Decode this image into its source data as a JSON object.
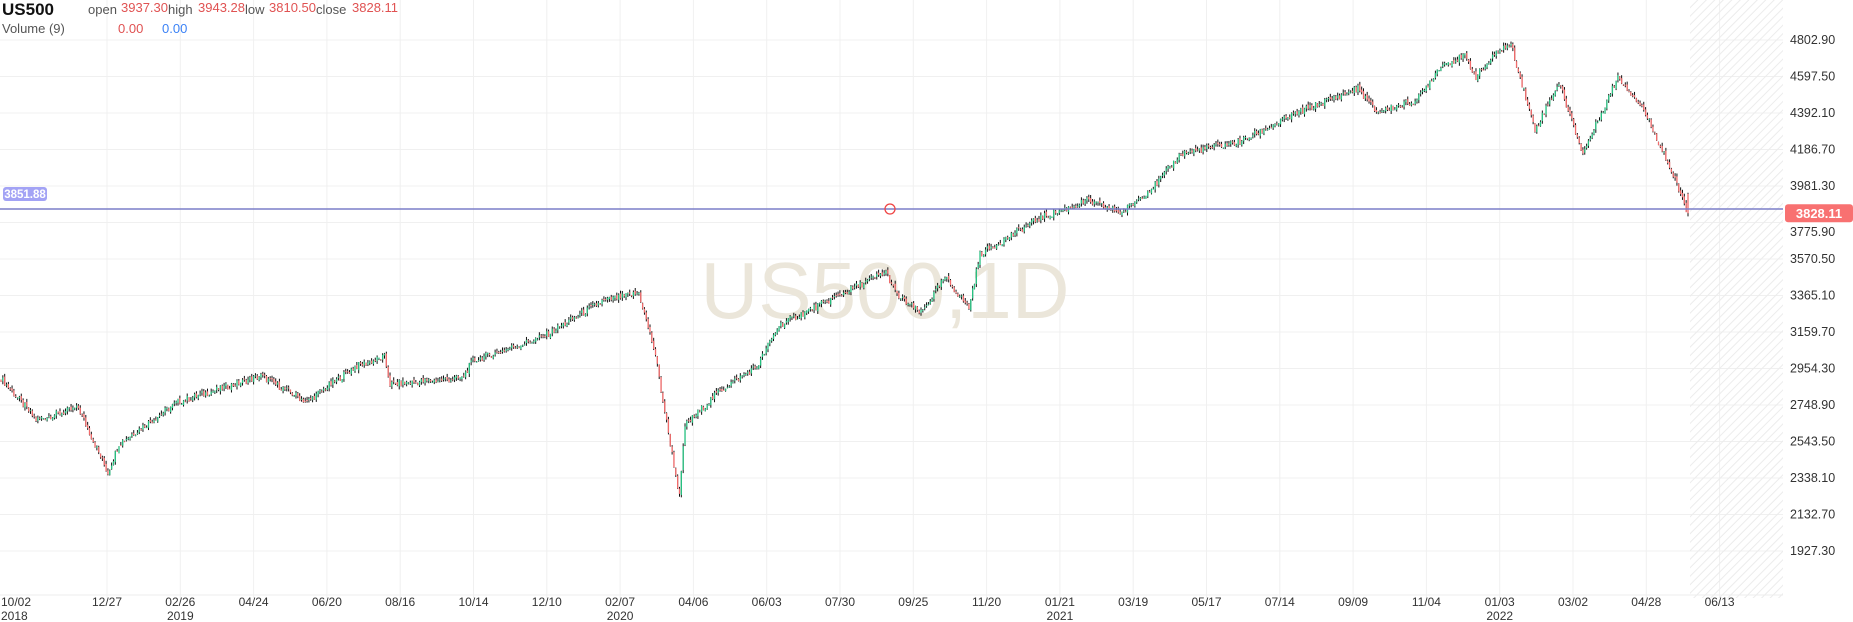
{
  "legend": {
    "symbol": "US500",
    "open_label": "open",
    "open": "3937.30",
    "high_label": "high",
    "high": "3943.28",
    "low_label": "low",
    "low": "3810.50",
    "close_label": "close",
    "close": "3828.11",
    "volume_label": "Volume (9)",
    "volume_value_1": "0.00",
    "volume_value_2": "0.00"
  },
  "crosshair": {
    "price_label": "3851.88",
    "price": 3851.88
  },
  "last_price_badge": "3828.11",
  "watermark": "US500,1D",
  "colors": {
    "up": "#26c281",
    "down": "#f26b6b",
    "wick": "#111111",
    "line": "#7b7fc8",
    "badge": "#f87171",
    "crosshair_label": "#a3a3f5"
  },
  "chart_data": {
    "type": "candlestick",
    "title": "US500,1D",
    "ylim": [
      1800,
      4900
    ],
    "y_ticks": [
      "4802.90",
      "4597.50",
      "4392.10",
      "4186.70",
      "3981.30",
      "3775.90",
      "3570.50",
      "3365.10",
      "3159.70",
      "2954.30",
      "2748.90",
      "2543.50",
      "2338.10",
      "2132.70",
      "1927.30"
    ],
    "x_ticks": [
      {
        "label": "10/02",
        "year": "2018"
      },
      {
        "label": "12/27"
      },
      {
        "label": "02/26",
        "year": "2019"
      },
      {
        "label": "04/24"
      },
      {
        "label": "06/20"
      },
      {
        "label": "08/16"
      },
      {
        "label": "10/14"
      },
      {
        "label": "12/10"
      },
      {
        "label": "02/07",
        "year": "2020"
      },
      {
        "label": "04/06"
      },
      {
        "label": "06/03"
      },
      {
        "label": "07/30"
      },
      {
        "label": "09/25"
      },
      {
        "label": "11/20"
      },
      {
        "label": "01/21",
        "year": "2021"
      },
      {
        "label": "03/19"
      },
      {
        "label": "05/17"
      },
      {
        "label": "07/14"
      },
      {
        "label": "09/09"
      },
      {
        "label": "11/04"
      },
      {
        "label": "01/03",
        "year": "2022"
      },
      {
        "label": "03/02"
      },
      {
        "label": "04/28"
      },
      {
        "label": "06/13"
      }
    ],
    "trading_days": 915,
    "close_path_day_price": [
      [
        0,
        2899
      ],
      [
        19,
        2666
      ],
      [
        42,
        2732
      ],
      [
        58,
        2366
      ],
      [
        64,
        2533
      ],
      [
        96,
        2766
      ],
      [
        141,
        2912
      ],
      [
        166,
        2766
      ],
      [
        192,
        2965
      ],
      [
        208,
        3019
      ],
      [
        211,
        2866
      ],
      [
        250,
        2899
      ],
      [
        256,
        2998
      ],
      [
        294,
        3132
      ],
      [
        326,
        3332
      ],
      [
        346,
        3378
      ],
      [
        355,
        3032
      ],
      [
        358,
        2832
      ],
      [
        368,
        2233
      ],
      [
        371,
        2633
      ],
      [
        390,
        2832
      ],
      [
        410,
        2965
      ],
      [
        422,
        3198
      ],
      [
        448,
        3332
      ],
      [
        480,
        3498
      ],
      [
        486,
        3365
      ],
      [
        499,
        3265
      ],
      [
        512,
        3465
      ],
      [
        525,
        3298
      ],
      [
        531,
        3598
      ],
      [
        563,
        3798
      ],
      [
        589,
        3897
      ],
      [
        608,
        3831
      ],
      [
        627,
        3997
      ],
      [
        640,
        4164
      ],
      [
        672,
        4230
      ],
      [
        704,
        4397
      ],
      [
        736,
        4530
      ],
      [
        746,
        4397
      ],
      [
        768,
        4463
      ],
      [
        781,
        4663
      ],
      [
        794,
        4710
      ],
      [
        800,
        4597
      ],
      [
        813,
        4750
      ],
      [
        819,
        4776
      ],
      [
        832,
        4297
      ],
      [
        845,
        4563
      ],
      [
        858,
        4164
      ],
      [
        877,
        4597
      ],
      [
        890,
        4430
      ],
      [
        902,
        4164
      ],
      [
        915,
        3828
      ]
    ],
    "last_candle": {
      "open": 3937.3,
      "high": 3943.28,
      "low": 3810.5,
      "close": 3828.11
    }
  }
}
